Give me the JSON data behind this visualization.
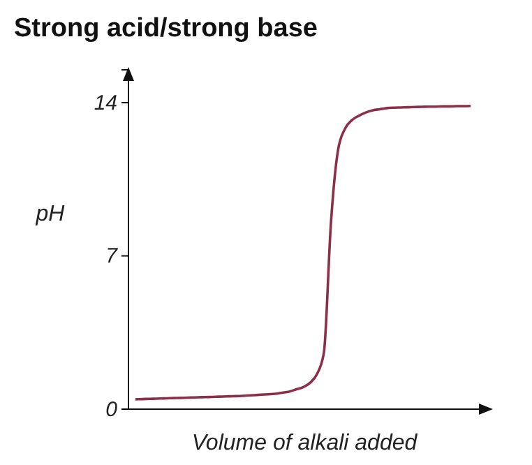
{
  "chart_data": {
    "type": "line",
    "title": "Strong acid/strong base",
    "xlabel": "Volume of alkali added",
    "ylabel": "pH",
    "categories": [
      null,
      null,
      null,
      null,
      null,
      null,
      null,
      null,
      null,
      null,
      null,
      null,
      null,
      null,
      null,
      null,
      null,
      null,
      null,
      null,
      null,
      null,
      null,
      null,
      null,
      null,
      null,
      null,
      null,
      null,
      null,
      null,
      null,
      null,
      null,
      null,
      null,
      null,
      null,
      null,
      null,
      null,
      null,
      null,
      null,
      null,
      null,
      null,
      null
    ],
    "series": [
      {
        "color": "#8b2f4a",
        "values": [
          0.45,
          0.46,
          0.47,
          0.48,
          0.49,
          0.5,
          0.51,
          0.52,
          0.53,
          0.54,
          0.55,
          0.56,
          0.57,
          0.58,
          0.59,
          0.6,
          0.62,
          0.64,
          0.66,
          0.68,
          0.7,
          0.75,
          0.8,
          0.9,
          1.0,
          1.2,
          1.6,
          2.6,
          8.5,
          11.8,
          12.8,
          13.2,
          13.4,
          13.55,
          13.65,
          13.7,
          13.75,
          13.77,
          13.78,
          13.79,
          13.8,
          13.81,
          13.82,
          13.82,
          13.83,
          13.83,
          13.84,
          13.84,
          13.85
        ]
      }
    ],
    "ylim": [
      0,
      15.5
    ],
    "yticks": [
      0,
      7,
      14
    ],
    "tick_labels": "y",
    "grid": false,
    "marker": "none",
    "line_style": "solid"
  }
}
